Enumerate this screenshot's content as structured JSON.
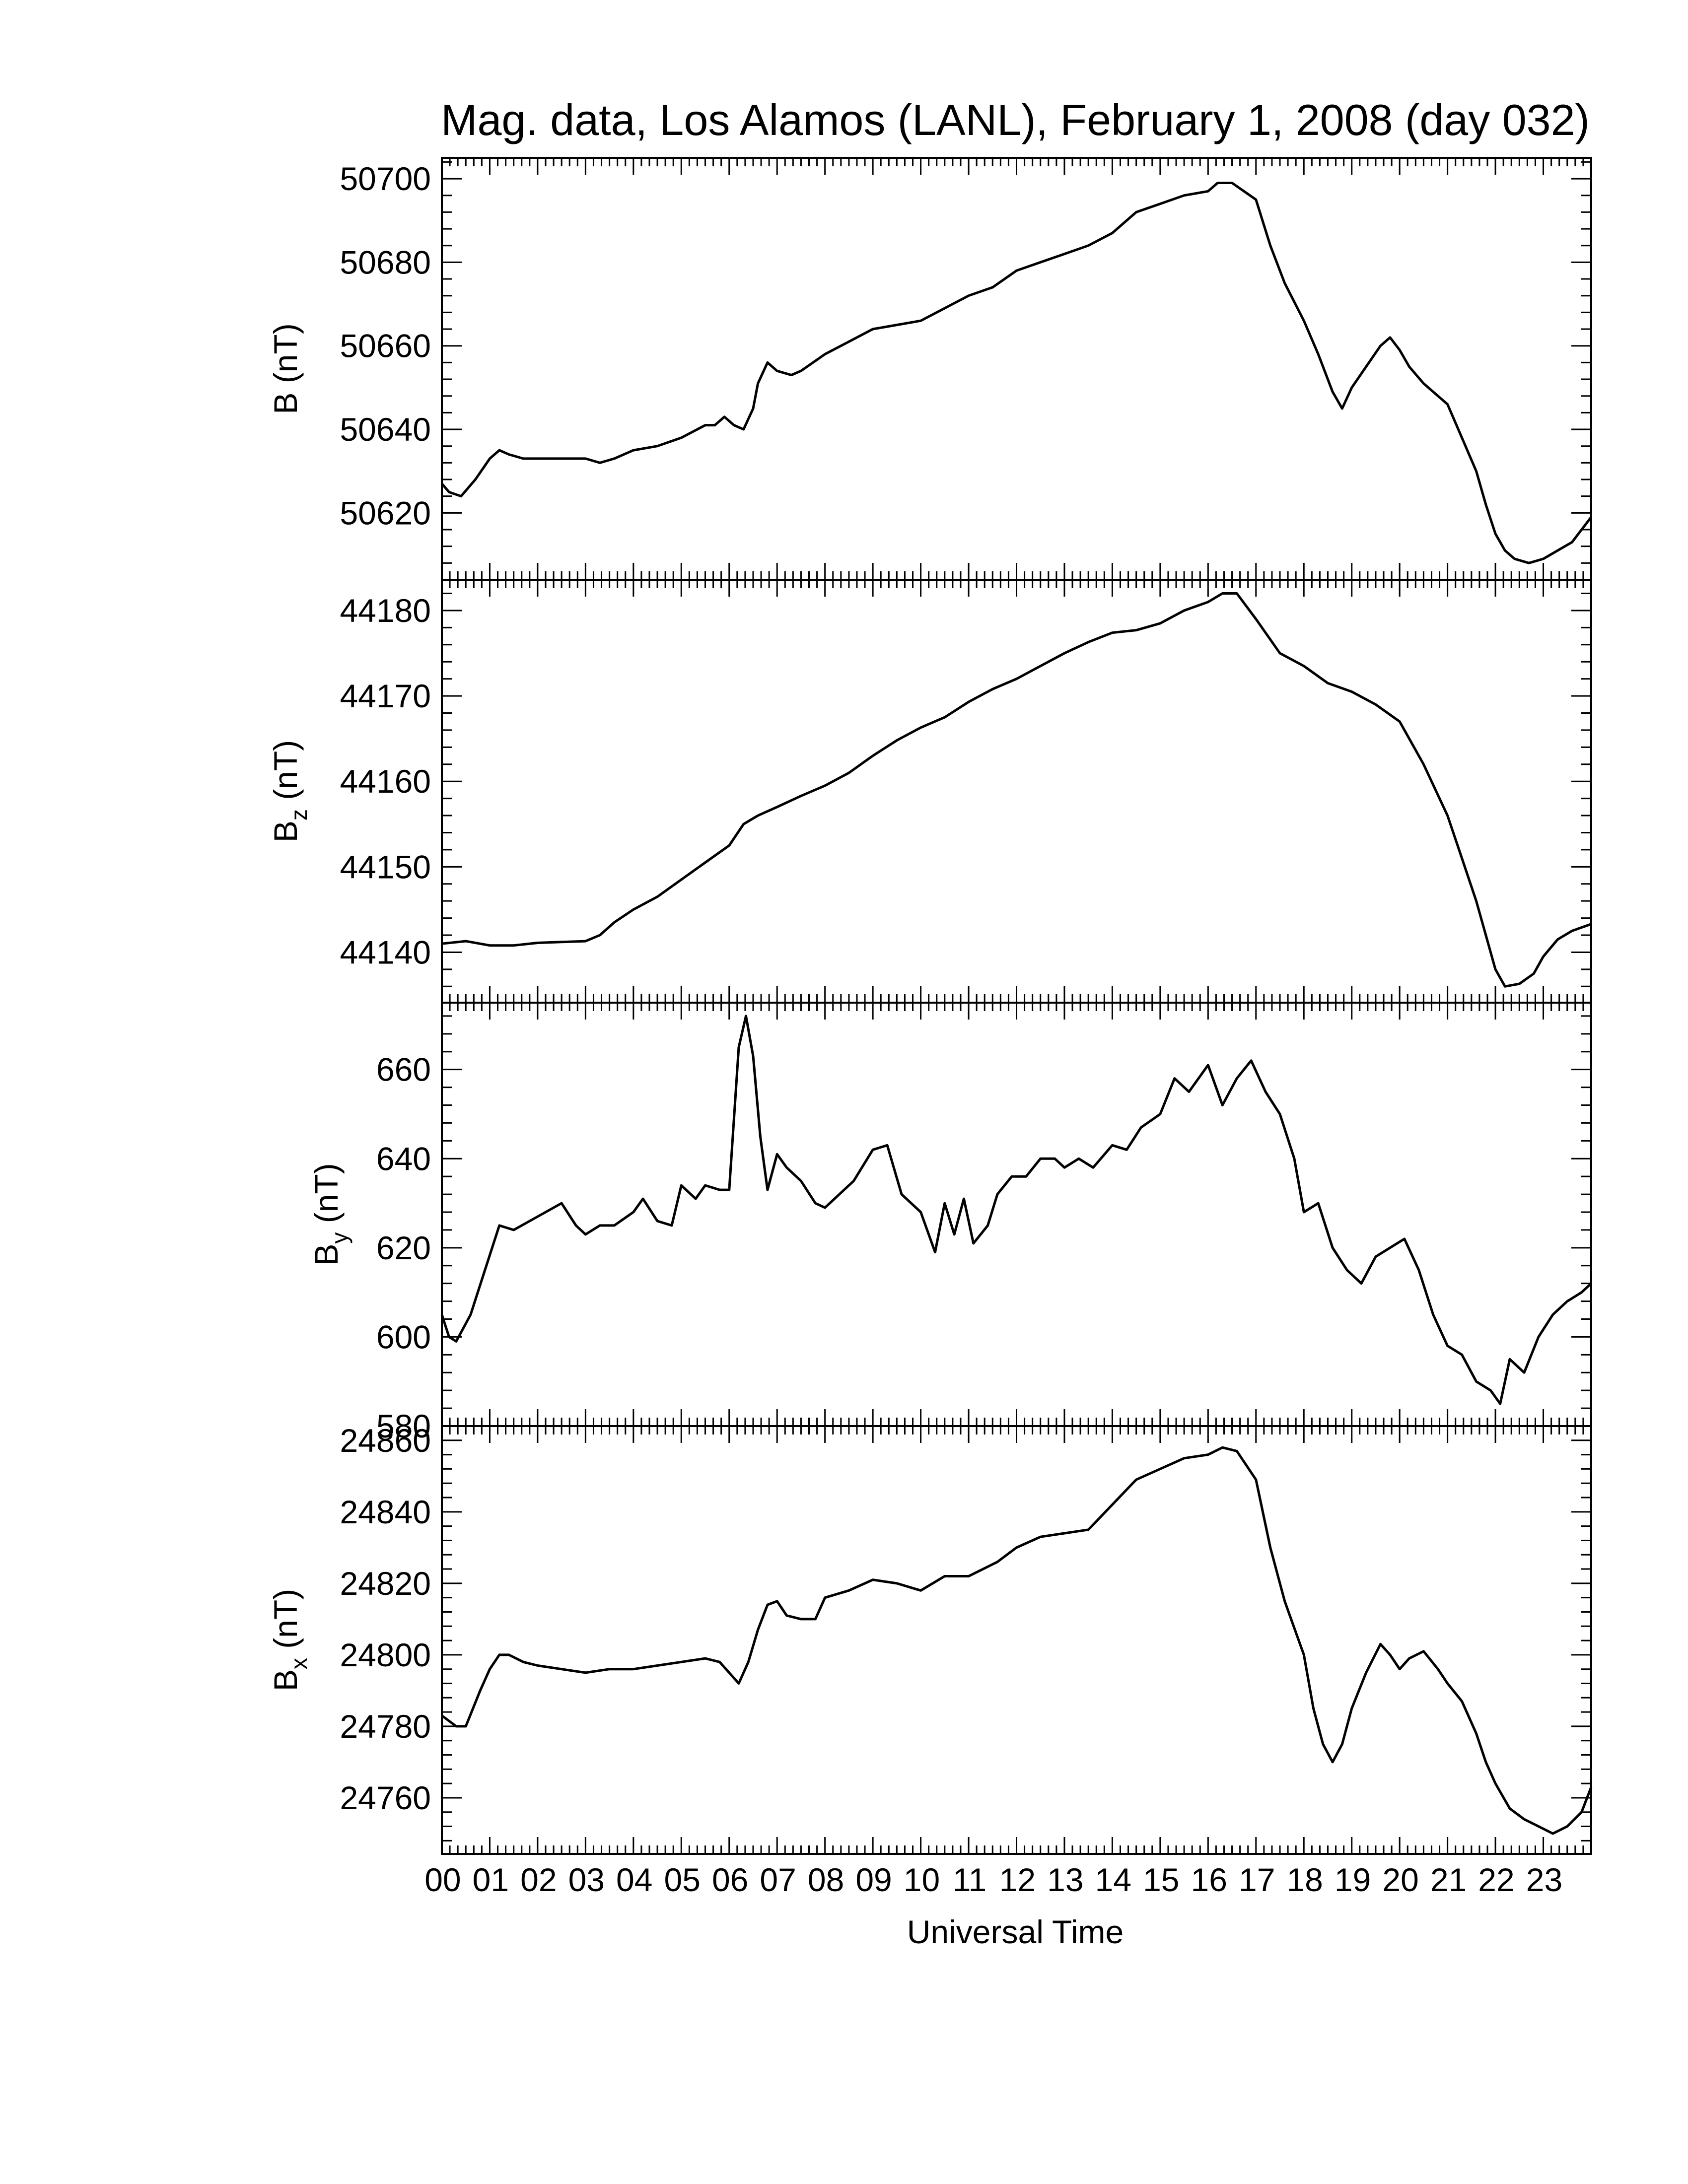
{
  "chart_data": {
    "type": "line",
    "title": "Mag. data, Los Alamos (LANL), February 1, 2008 (day 032)",
    "xlabel": "Universal Time",
    "x_ticklabels": [
      "00",
      "01",
      "02",
      "03",
      "04",
      "05",
      "06",
      "07",
      "08",
      "09",
      "10",
      "11",
      "12",
      "13",
      "14",
      "15",
      "16",
      "17",
      "18",
      "19",
      "20",
      "21",
      "22",
      "23"
    ],
    "xlim": [
      0,
      24
    ],
    "line_color": "#000000",
    "panels": [
      {
        "key": "B",
        "ylabel": "B (nT)",
        "ylabel_main": "B",
        "ylabel_sub": "",
        "ylabel_unit": "(nT)",
        "ylim": [
          50604,
          50705
        ],
        "yticks": [
          "50620",
          "50640",
          "50660",
          "50680",
          "50700"
        ],
        "ytick_values": [
          50620,
          50640,
          50660,
          50680,
          50700
        ],
        "x": [
          0.0,
          0.15,
          0.4,
          0.7,
          1.0,
          1.2,
          1.4,
          1.7,
          2.0,
          2.5,
          3.0,
          3.3,
          3.6,
          4.0,
          4.5,
          5.0,
          5.5,
          5.7,
          5.9,
          6.1,
          6.3,
          6.5,
          6.6,
          6.8,
          7.0,
          7.3,
          7.5,
          8.0,
          8.5,
          9.0,
          9.5,
          10.0,
          10.5,
          11.0,
          11.5,
          12.0,
          12.5,
          13.0,
          13.5,
          14.0,
          14.5,
          15.0,
          15.5,
          16.0,
          16.2,
          16.5,
          17.0,
          17.3,
          17.6,
          18.0,
          18.3,
          18.6,
          18.8,
          19.0,
          19.3,
          19.6,
          19.8,
          20.0,
          20.2,
          20.5,
          21.0,
          21.3,
          21.6,
          21.8,
          22.0,
          22.2,
          22.4,
          22.7,
          23.0,
          23.3,
          23.6,
          24.0
        ],
        "y": [
          50627,
          50625,
          50624,
          50628,
          50633,
          50635,
          50634,
          50633,
          50633,
          50633,
          50633,
          50632,
          50633,
          50635,
          50636,
          50638,
          50641,
          50641,
          50643,
          50641,
          50640,
          50645,
          50651,
          50656,
          50654,
          50653,
          50654,
          50658,
          50661,
          50664,
          50665,
          50666,
          50669,
          50672,
          50674,
          50678,
          50680,
          50682,
          50684,
          50687,
          50692,
          50694,
          50696,
          50697,
          50699,
          50699,
          50695,
          50684,
          50675,
          50666,
          50658,
          50649,
          50645,
          50650,
          50655,
          50660,
          50662,
          50659,
          50655,
          50651,
          50646,
          50638,
          50630,
          50622,
          50615,
          50611,
          50609,
          50608,
          50609,
          50611,
          50613,
          50619
        ]
      },
      {
        "key": "Bz",
        "ylabel": "Bz (nT)",
        "ylabel_main": "B",
        "ylabel_sub": "z",
        "ylabel_unit": "(nT)",
        "ylim": [
          44134.1,
          44183.6
        ],
        "yticks": [
          "44140",
          "44150",
          "44160",
          "44170",
          "44180"
        ],
        "ytick_values": [
          44140,
          44150,
          44160,
          44170,
          44180
        ],
        "x": [
          0.0,
          0.5,
          1.0,
          1.5,
          2.0,
          2.5,
          3.0,
          3.3,
          3.6,
          4.0,
          4.5,
          5.0,
          5.5,
          6.0,
          6.3,
          6.6,
          7.0,
          7.5,
          8.0,
          8.5,
          9.0,
          9.5,
          10.0,
          10.5,
          11.0,
          11.5,
          12.0,
          12.5,
          13.0,
          13.5,
          14.0,
          14.5,
          15.0,
          15.5,
          16.0,
          16.3,
          16.6,
          17.0,
          17.5,
          18.0,
          18.5,
          19.0,
          19.5,
          20.0,
          20.5,
          21.0,
          21.3,
          21.6,
          21.8,
          22.0,
          22.2,
          22.5,
          22.8,
          23.0,
          23.3,
          23.6,
          24.0
        ],
        "y": [
          44141,
          44141.3,
          44140.8,
          44140.8,
          44141.1,
          44141.2,
          44141.3,
          44142,
          44143.5,
          44145,
          44146.5,
          44148.5,
          44150.5,
          44152.5,
          44155,
          44156,
          44157,
          44158.3,
          44159.5,
          44161,
          44163,
          44164.8,
          44166.3,
          44167.5,
          44169.3,
          44170.8,
          44172,
          44173.5,
          44175,
          44176.3,
          44177.4,
          44177.7,
          44178.5,
          44180,
          44181,
          44182,
          44182,
          44179,
          44175,
          44173.5,
          44171.5,
          44170.5,
          44169,
          44167,
          44162,
          44156,
          44151,
          44146,
          44142,
          44138,
          44136,
          44136.3,
          44137.5,
          44139.5,
          44141.5,
          44142.5,
          44143.3
        ]
      },
      {
        "key": "By",
        "ylabel": "By (nT)",
        "ylabel_main": "B",
        "ylabel_sub": "y",
        "ylabel_unit": "(nT)",
        "ylim": [
          580,
          675
        ],
        "yticks": [
          "580",
          "600",
          "620",
          "640",
          "660"
        ],
        "ytick_values": [
          580,
          600,
          620,
          640,
          660
        ],
        "x": [
          0.0,
          0.15,
          0.3,
          0.6,
          0.9,
          1.2,
          1.5,
          2.0,
          2.5,
          2.8,
          3.0,
          3.3,
          3.6,
          4.0,
          4.2,
          4.5,
          4.8,
          5.0,
          5.3,
          5.5,
          5.8,
          6.0,
          6.2,
          6.35,
          6.5,
          6.65,
          6.8,
          7.0,
          7.2,
          7.5,
          7.8,
          8.0,
          8.3,
          8.6,
          9.0,
          9.3,
          9.6,
          10.0,
          10.3,
          10.5,
          10.7,
          10.9,
          11.1,
          11.4,
          11.6,
          11.9,
          12.2,
          12.5,
          12.8,
          13.0,
          13.3,
          13.6,
          14.0,
          14.3,
          14.6,
          15.0,
          15.3,
          15.6,
          16.0,
          16.3,
          16.6,
          16.9,
          17.2,
          17.5,
          17.8,
          18.0,
          18.3,
          18.6,
          18.9,
          19.2,
          19.5,
          19.8,
          20.1,
          20.4,
          20.7,
          21.0,
          21.3,
          21.6,
          21.9,
          22.1,
          22.3,
          22.6,
          22.9,
          23.2,
          23.5,
          23.8,
          24.0
        ],
        "y": [
          605,
          600,
          599,
          605,
          615,
          625,
          624,
          627,
          630,
          625,
          623,
          625,
          625,
          628,
          631,
          626,
          625,
          634,
          631,
          634,
          633,
          633,
          665,
          672,
          663,
          645,
          633,
          641,
          638,
          635,
          630,
          629,
          632,
          635,
          642,
          643,
          632,
          628,
          619,
          630,
          623,
          631,
          621,
          625,
          632,
          636,
          636,
          640,
          640,
          638,
          640,
          638,
          643,
          642,
          647,
          650,
          658,
          655,
          661,
          652,
          658,
          662,
          655,
          650,
          640,
          628,
          630,
          620,
          615,
          612,
          618,
          620,
          622,
          615,
          605,
          598,
          596,
          590,
          588,
          585,
          595,
          592,
          600,
          605,
          608,
          610,
          612
        ]
      },
      {
        "key": "Bx",
        "ylabel": "Bx (nT)",
        "ylabel_main": "B",
        "ylabel_sub": "x",
        "ylabel_unit": "(nT)",
        "ylim": [
          24744.3,
          24864
        ],
        "yticks": [
          "24760",
          "24780",
          "24800",
          "24820",
          "24840",
          "24860"
        ],
        "ytick_values": [
          24760,
          24780,
          24800,
          24820,
          24840,
          24860
        ],
        "x": [
          0.0,
          0.1,
          0.3,
          0.5,
          0.8,
          1.0,
          1.2,
          1.4,
          1.7,
          2.0,
          2.5,
          3.0,
          3.5,
          4.0,
          4.5,
          5.0,
          5.5,
          5.8,
          6.0,
          6.2,
          6.4,
          6.6,
          6.8,
          7.0,
          7.2,
          7.5,
          7.8,
          8.0,
          8.5,
          9.0,
          9.5,
          10.0,
          10.5,
          11.0,
          11.3,
          11.6,
          12.0,
          12.5,
          13.0,
          13.5,
          14.0,
          14.5,
          15.0,
          15.5,
          16.0,
          16.3,
          16.6,
          17.0,
          17.3,
          17.6,
          18.0,
          18.2,
          18.4,
          18.6,
          18.8,
          19.0,
          19.3,
          19.6,
          19.8,
          20.0,
          20.2,
          20.5,
          20.8,
          21.0,
          21.3,
          21.6,
          21.8,
          22.0,
          22.3,
          22.6,
          22.9,
          23.2,
          23.5,
          23.8,
          24.0
        ],
        "y": [
          24783,
          24782,
          24780,
          24780,
          24790,
          24796,
          24800,
          24800,
          24798,
          24797,
          24796,
          24795,
          24796,
          24796,
          24797,
          24798,
          24799,
          24798,
          24795,
          24792,
          24798,
          24807,
          24814,
          24815,
          24811,
          24810,
          24810,
          24816,
          24818,
          24821,
          24820,
          24818,
          24822,
          24822,
          24824,
          24826,
          24830,
          24833,
          24834,
          24835,
          24842,
          24849,
          24852,
          24855,
          24856,
          24858,
          24857,
          24849,
          24830,
          24815,
          24800,
          24785,
          24775,
          24770,
          24775,
          24785,
          24795,
          24803,
          24800,
          24796,
          24799,
          24801,
          24796,
          24792,
          24787,
          24778,
          24770,
          24764,
          24757,
          24754,
          24752,
          24750,
          24752,
          24756,
          24763
        ]
      }
    ]
  }
}
